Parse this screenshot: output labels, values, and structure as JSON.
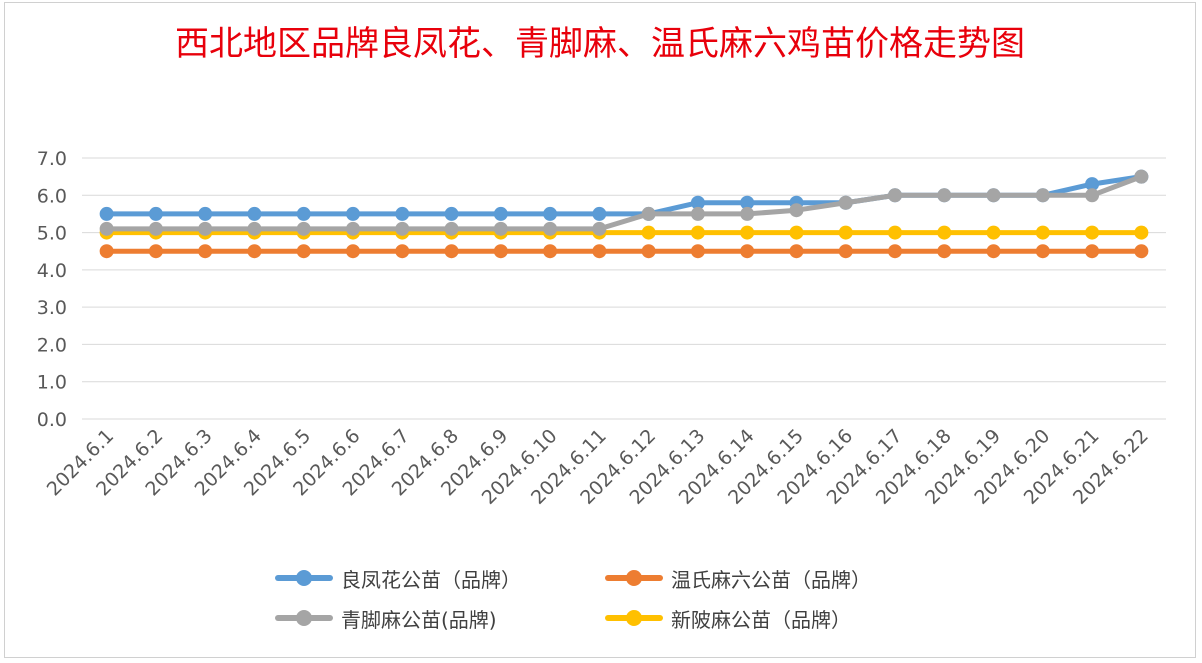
{
  "title": "西北地区品牌良凤花、青脚麻、温氏麻六鸡苗价格走势图",
  "chart_data": {
    "type": "line",
    "title": "西北地区品牌良凤花、青脚麻、温氏麻六鸡苗价格走势图",
    "xlabel": "",
    "ylabel": "",
    "ylim": [
      0,
      7
    ],
    "yticks": [
      "0.0",
      "1.0",
      "2.0",
      "3.0",
      "4.0",
      "5.0",
      "6.0",
      "7.0"
    ],
    "grid": true,
    "legend_position": "bottom",
    "categories": [
      "2024.6.1",
      "2024.6.2",
      "2024.6.3",
      "2024.6.4",
      "2024.6.5",
      "2024.6.6",
      "2024.6.7",
      "2024.6.8",
      "2024.6.9",
      "2024.6.10",
      "2024.6.11",
      "2024.6.12",
      "2024.6.13",
      "2024.6.14",
      "2024.6.15",
      "2024.6.16",
      "2024.6.17",
      "2024.6.18",
      "2024.6.19",
      "2024.6.20",
      "2024.6.21",
      "2024.6.22"
    ],
    "series": [
      {
        "name": "良凤花公苗（品牌）",
        "color": "#5b9bd5",
        "values": [
          5.5,
          5.5,
          5.5,
          5.5,
          5.5,
          5.5,
          5.5,
          5.5,
          5.5,
          5.5,
          5.5,
          5.5,
          5.8,
          5.8,
          5.8,
          5.8,
          6.0,
          6.0,
          6.0,
          6.0,
          6.3,
          6.5
        ]
      },
      {
        "name": "温氏麻六公苗（品牌）",
        "color": "#ed7d31",
        "values": [
          4.5,
          4.5,
          4.5,
          4.5,
          4.5,
          4.5,
          4.5,
          4.5,
          4.5,
          4.5,
          4.5,
          4.5,
          4.5,
          4.5,
          4.5,
          4.5,
          4.5,
          4.5,
          4.5,
          4.5,
          4.5,
          4.5
        ]
      },
      {
        "name": "青脚麻公苗(品牌)",
        "color": "#a5a5a5",
        "values": [
          5.1,
          5.1,
          5.1,
          5.1,
          5.1,
          5.1,
          5.1,
          5.1,
          5.1,
          5.1,
          5.1,
          5.5,
          5.5,
          5.5,
          5.6,
          5.8,
          6.0,
          6.0,
          6.0,
          6.0,
          6.0,
          6.5
        ]
      },
      {
        "name": "新陂麻公苗（品牌）",
        "color": "#ffc000",
        "values": [
          5.0,
          5.0,
          5.0,
          5.0,
          5.0,
          5.0,
          5.0,
          5.0,
          5.0,
          5.0,
          5.0,
          5.0,
          5.0,
          5.0,
          5.0,
          5.0,
          5.0,
          5.0,
          5.0,
          5.0,
          5.0,
          5.0
        ]
      }
    ]
  },
  "legend_order": [
    0,
    1,
    2,
    3
  ]
}
